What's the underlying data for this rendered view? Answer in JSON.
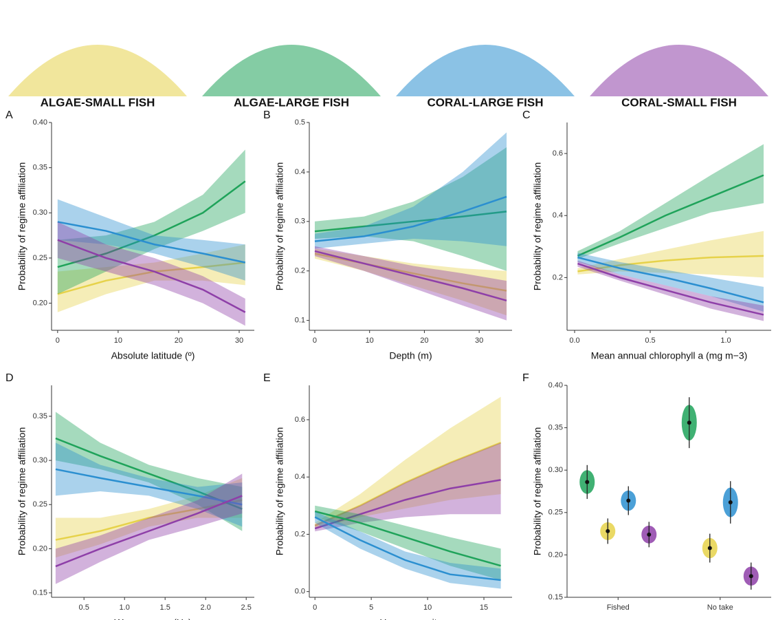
{
  "header": {
    "regimes": [
      {
        "name": "ALGAE-SMALL FISH",
        "color": "#e6d24a"
      },
      {
        "name": "ALGAE-LARGE FISH",
        "color": "#1fa35a"
      },
      {
        "name": "CORAL-LARGE FISH",
        "color": "#2b8fd0"
      },
      {
        "name": "CORAL-SMALL FISH",
        "color": "#8e3fa8"
      }
    ]
  },
  "chart_data": [
    {
      "type": "line",
      "title": "A",
      "x_label": "Absolute latitude (º)",
      "y_label": "Probability of regime affiliation",
      "x": [
        0,
        8,
        16,
        24,
        31
      ],
      "xlim": [
        -1,
        32.5
      ],
      "xticks": [
        0,
        10,
        20,
        30
      ],
      "ylim": [
        0.17,
        0.4
      ],
      "yticks": [
        {
          "value": 0.2,
          "label": "0.20"
        },
        0.25,
        {
          "value": 0.3,
          "label": "0.30"
        },
        0.35,
        {
          "value": 0.4,
          "label": "0.40"
        }
      ],
      "series": [
        {
          "color": "#e6d24a",
          "values": [
            0.21,
            0.225,
            0.235,
            0.24,
            0.245
          ],
          "lower": [
            0.19,
            0.21,
            0.225,
            0.225,
            0.22
          ],
          "upper": [
            0.235,
            0.24,
            0.245,
            0.255,
            0.265
          ]
        },
        {
          "color": "#1fa35a",
          "values": [
            0.24,
            0.255,
            0.275,
            0.3,
            0.335
          ],
          "lower": [
            0.21,
            0.235,
            0.26,
            0.28,
            0.3
          ],
          "upper": [
            0.27,
            0.275,
            0.29,
            0.32,
            0.37
          ]
        },
        {
          "color": "#2b8fd0",
          "values": [
            0.29,
            0.28,
            0.265,
            0.255,
            0.245
          ],
          "lower": [
            0.27,
            0.265,
            0.255,
            0.24,
            0.225
          ],
          "upper": [
            0.315,
            0.295,
            0.275,
            0.27,
            0.265
          ]
        },
        {
          "color": "#8e3fa8",
          "values": [
            0.27,
            0.25,
            0.235,
            0.215,
            0.19
          ],
          "lower": [
            0.25,
            0.235,
            0.22,
            0.2,
            0.175
          ],
          "upper": [
            0.29,
            0.265,
            0.25,
            0.23,
            0.205
          ]
        }
      ]
    },
    {
      "type": "line",
      "title": "B",
      "x_label": "Depth (m)",
      "y_label": "Probability of regime affiliation",
      "x": [
        0,
        9,
        18,
        27,
        35
      ],
      "xlim": [
        -1,
        36
      ],
      "xticks": [
        0,
        10,
        20,
        30
      ],
      "ylim": [
        0.08,
        0.5
      ],
      "yticks": [
        0.1,
        0.2,
        0.3,
        0.4,
        0.5
      ],
      "series": [
        {
          "color": "#e6d24a",
          "values": [
            0.235,
            0.215,
            0.195,
            0.175,
            0.16
          ],
          "lower": [
            0.225,
            0.2,
            0.17,
            0.14,
            0.11
          ],
          "upper": [
            0.245,
            0.23,
            0.215,
            0.205,
            0.2
          ]
        },
        {
          "color": "#1fa35a",
          "values": [
            0.28,
            0.29,
            0.3,
            0.31,
            0.32
          ],
          "lower": [
            0.265,
            0.27,
            0.26,
            0.23,
            0.2
          ],
          "upper": [
            0.3,
            0.31,
            0.34,
            0.39,
            0.45
          ]
        },
        {
          "color": "#2b8fd0",
          "values": [
            0.26,
            0.27,
            0.29,
            0.32,
            0.35
          ],
          "lower": [
            0.245,
            0.255,
            0.265,
            0.26,
            0.25
          ],
          "upper": [
            0.275,
            0.29,
            0.33,
            0.4,
            0.48
          ]
        },
        {
          "color": "#8e3fa8",
          "values": [
            0.24,
            0.215,
            0.19,
            0.165,
            0.14
          ],
          "lower": [
            0.23,
            0.2,
            0.165,
            0.13,
            0.1
          ],
          "upper": [
            0.25,
            0.23,
            0.21,
            0.195,
            0.18
          ]
        }
      ]
    },
    {
      "type": "line",
      "title": "C",
      "x_label": "Mean annual chlorophyll a (mg m−3)",
      "y_label": "Probability of regime affiliation",
      "x": [
        0.02,
        0.3,
        0.6,
        0.9,
        1.25
      ],
      "xlim": [
        -0.05,
        1.3
      ],
      "xticks": [
        {
          "value": 0,
          "label": "0.0"
        },
        0.5,
        {
          "value": 1,
          "label": "1.0"
        }
      ],
      "ylim": [
        0.03,
        0.7
      ],
      "yticks": [
        0.2,
        0.4,
        0.6
      ],
      "series": [
        {
          "color": "#e6d24a",
          "values": [
            0.22,
            0.24,
            0.255,
            0.265,
            0.27
          ],
          "lower": [
            0.21,
            0.22,
            0.215,
            0.21,
            0.2
          ],
          "upper": [
            0.23,
            0.26,
            0.29,
            0.32,
            0.35
          ]
        },
        {
          "color": "#1fa35a",
          "values": [
            0.27,
            0.33,
            0.4,
            0.46,
            0.53
          ],
          "lower": [
            0.26,
            0.31,
            0.36,
            0.41,
            0.44
          ],
          "upper": [
            0.285,
            0.35,
            0.44,
            0.53,
            0.63
          ]
        },
        {
          "color": "#2b8fd0",
          "values": [
            0.265,
            0.23,
            0.2,
            0.165,
            0.12
          ],
          "lower": [
            0.25,
            0.21,
            0.175,
            0.14,
            0.09
          ],
          "upper": [
            0.28,
            0.25,
            0.225,
            0.2,
            0.17
          ]
        },
        {
          "color": "#8e3fa8",
          "values": [
            0.245,
            0.2,
            0.16,
            0.12,
            0.08
          ],
          "lower": [
            0.235,
            0.19,
            0.145,
            0.1,
            0.06
          ],
          "upper": [
            0.255,
            0.21,
            0.175,
            0.14,
            0.11
          ]
        }
      ]
    },
    {
      "type": "line",
      "title": "D",
      "x_label": "Wave energy (Hs)",
      "y_label": "Probability of regime affiliation",
      "x": [
        0.15,
        0.7,
        1.3,
        1.9,
        2.45
      ],
      "xlim": [
        0.1,
        2.6
      ],
      "xticks": [
        0.5,
        {
          "value": 1,
          "label": "1.0"
        },
        1.5,
        {
          "value": 2,
          "label": "2.0"
        },
        2.5
      ],
      "ylim": [
        0.145,
        0.385
      ],
      "yticks": [
        0.15,
        {
          "value": 0.2,
          "label": "0.20"
        },
        0.25,
        {
          "value": 0.3,
          "label": "0.30"
        },
        0.35
      ],
      "series": [
        {
          "color": "#e6d24a",
          "values": [
            0.21,
            0.22,
            0.235,
            0.245,
            0.255
          ],
          "lower": [
            0.19,
            0.205,
            0.225,
            0.235,
            0.235
          ],
          "upper": [
            0.235,
            0.235,
            0.245,
            0.26,
            0.28
          ]
        },
        {
          "color": "#1fa35a",
          "values": [
            0.325,
            0.305,
            0.285,
            0.265,
            0.245
          ],
          "lower": [
            0.3,
            0.29,
            0.275,
            0.25,
            0.22
          ],
          "upper": [
            0.355,
            0.32,
            0.295,
            0.28,
            0.27
          ]
        },
        {
          "color": "#2b8fd0",
          "values": [
            0.29,
            0.28,
            0.27,
            0.26,
            0.25
          ],
          "lower": [
            0.26,
            0.265,
            0.26,
            0.245,
            0.225
          ],
          "upper": [
            0.32,
            0.295,
            0.28,
            0.27,
            0.275
          ]
        },
        {
          "color": "#8e3fa8",
          "values": [
            0.18,
            0.2,
            0.22,
            0.24,
            0.26
          ],
          "lower": [
            0.16,
            0.185,
            0.21,
            0.225,
            0.24
          ],
          "upper": [
            0.2,
            0.215,
            0.235,
            0.255,
            0.285
          ]
        }
      ]
    },
    {
      "type": "line",
      "title": "E",
      "x_label": "Human gravity",
      "y_label": "Probability of regime affiliation",
      "x": [
        0,
        4,
        8,
        12,
        16.5
      ],
      "xlim": [
        -0.5,
        17.5
      ],
      "xticks": [
        0,
        5,
        10,
        15
      ],
      "ylim": [
        -0.02,
        0.72
      ],
      "yticks": [
        {
          "value": 0,
          "label": "0.0"
        },
        0.2,
        0.4,
        0.6
      ],
      "series": [
        {
          "color": "#e6d24a",
          "values": [
            0.23,
            0.3,
            0.38,
            0.45,
            0.52
          ],
          "lower": [
            0.22,
            0.26,
            0.29,
            0.32,
            0.34
          ],
          "upper": [
            0.24,
            0.34,
            0.46,
            0.57,
            0.68
          ]
        },
        {
          "color": "#8e3fa8",
          "values": [
            0.22,
            0.27,
            0.32,
            0.36,
            0.39
          ],
          "lower": [
            0.21,
            0.24,
            0.26,
            0.27,
            0.27
          ],
          "upper": [
            0.235,
            0.3,
            0.38,
            0.45,
            0.52
          ]
        },
        {
          "color": "#1fa35a",
          "values": [
            0.28,
            0.24,
            0.19,
            0.14,
            0.09
          ],
          "lower": [
            0.26,
            0.21,
            0.15,
            0.09,
            0.04
          ],
          "upper": [
            0.3,
            0.27,
            0.23,
            0.19,
            0.15
          ]
        },
        {
          "color": "#2b8fd0",
          "values": [
            0.26,
            0.18,
            0.11,
            0.06,
            0.04
          ],
          "lower": [
            0.24,
            0.15,
            0.08,
            0.03,
            0.01
          ],
          "upper": [
            0.28,
            0.21,
            0.14,
            0.1,
            0.08
          ]
        }
      ]
    },
    {
      "type": "violin",
      "title": "F",
      "y_label": "Probability of regime affiliation",
      "categories": [
        "Fished",
        "No take"
      ],
      "ylim": [
        0.15,
        0.4
      ],
      "yticks": [
        0.15,
        {
          "value": 0.2,
          "label": "0.20"
        },
        0.25,
        {
          "value": 0.3,
          "label": "0.30"
        },
        0.35,
        {
          "value": 0.4,
          "label": "0.40"
        }
      ],
      "series": [
        {
          "color": "#1fa35a",
          "values": [
            0.286,
            0.356
          ],
          "errors": [
            0.02,
            0.03
          ]
        },
        {
          "color": "#e6d24a",
          "values": [
            0.228,
            0.208
          ],
          "errors": [
            0.015,
            0.017
          ]
        },
        {
          "color": "#2b8fd0",
          "values": [
            0.264,
            0.262
          ],
          "errors": [
            0.017,
            0.025
          ]
        },
        {
          "color": "#8e3fa8",
          "values": [
            0.224,
            0.175
          ],
          "errors": [
            0.015,
            0.016
          ]
        }
      ]
    }
  ]
}
